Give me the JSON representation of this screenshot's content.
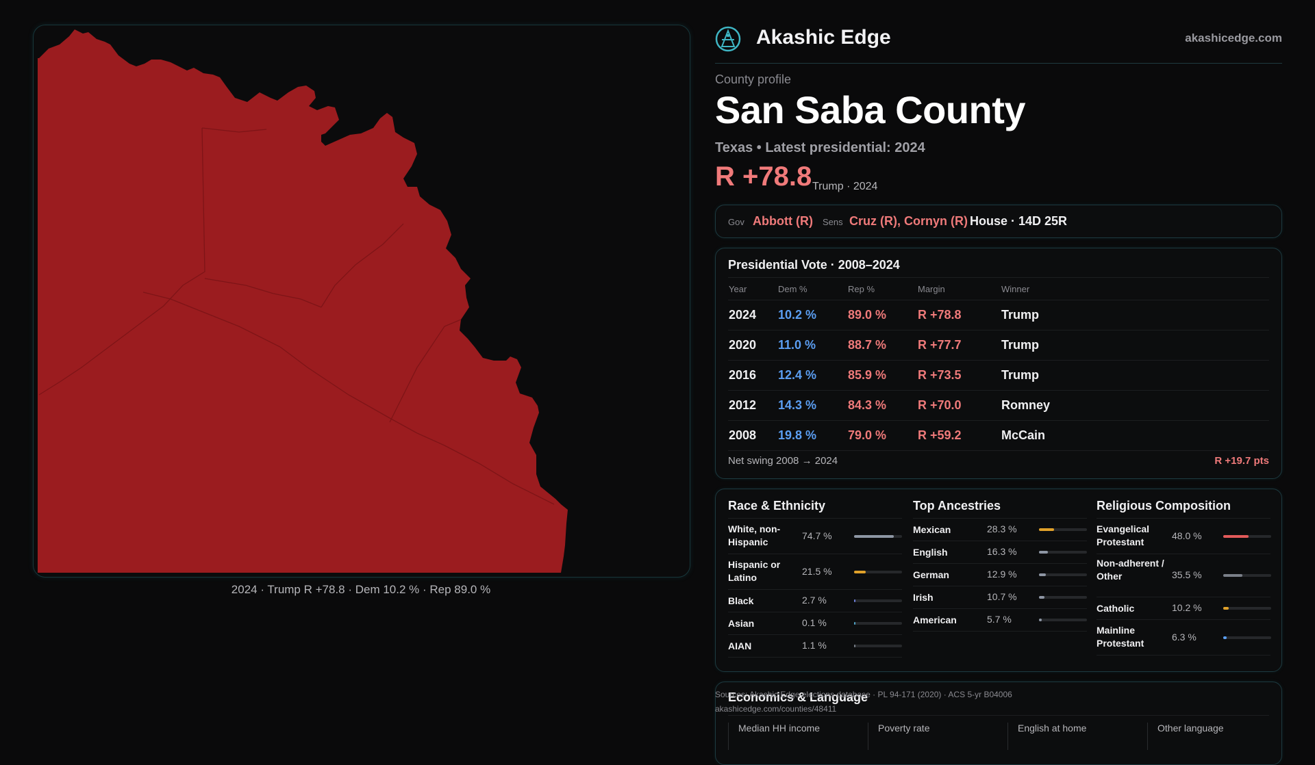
{
  "brand": {
    "name": "Akashic Edge",
    "site": "akashicedge.com"
  },
  "profile": {
    "eyebrow": "County profile",
    "county": "San Saba County",
    "subtitle": "Texas • Latest presidential: 2024",
    "margin": "R +78.8",
    "margin_note": "Trump · 2024"
  },
  "officials": {
    "gov_label": "Gov",
    "gov": "Abbott (R)",
    "sens_label": "Sens",
    "sens": "Cruz (R), Cornyn (R)",
    "house": "House · 14D 25R"
  },
  "presidential": {
    "title": "Presidential Vote · 2008–2024",
    "headers": [
      "Year",
      "Dem %",
      "Rep %",
      "Margin",
      "Winner"
    ],
    "rows": [
      [
        "2024",
        "10.2 %",
        "89.0 %",
        "R +78.8",
        "Trump"
      ],
      [
        "2020",
        "11.0 %",
        "88.7 %",
        "R +77.7",
        "Trump"
      ],
      [
        "2016",
        "12.4 %",
        "85.9 %",
        "R +73.5",
        "Trump"
      ],
      [
        "2012",
        "14.3 %",
        "84.3 %",
        "R +70.0",
        "Romney"
      ],
      [
        "2008",
        "19.8 %",
        "79.0 %",
        "R +59.2",
        "McCain"
      ]
    ],
    "swing_label": "Net swing 2008 → 2024",
    "swing_value": "R +19.7 pts"
  },
  "race": {
    "title": "Race & Ethnicity",
    "items": [
      {
        "name": "White, non-Hispanic",
        "pct": "74.7 %",
        "share": 0.747,
        "color": "#8e96a4"
      },
      {
        "name": "Hispanic or Latino",
        "pct": "21.5 %",
        "share": 0.215,
        "color": "#e0a12a"
      },
      {
        "name": "Black",
        "pct": "2.7 %",
        "share": 0.027,
        "color": "#6e7fd8"
      },
      {
        "name": "Asian",
        "pct": "0.1 %",
        "share": 0.001,
        "color": "#4fa3c7"
      },
      {
        "name": "AIAN",
        "pct": "1.1 %",
        "share": 0.011,
        "color": "#7a7f88"
      }
    ]
  },
  "ancestry": {
    "title": "Top Ancestries",
    "items": [
      {
        "name": "Mexican",
        "pct": "28.3 %",
        "share": 0.283,
        "color": "#e0a12a"
      },
      {
        "name": "English",
        "pct": "16.3 %",
        "share": 0.163,
        "color": "#8e96a4"
      },
      {
        "name": "German",
        "pct": "12.9 %",
        "share": 0.129,
        "color": "#8e96a4"
      },
      {
        "name": "Irish",
        "pct": "10.7 %",
        "share": 0.107,
        "color": "#8e96a4"
      },
      {
        "name": "American",
        "pct": "5.7 %",
        "share": 0.057,
        "color": "#8e96a4"
      }
    ]
  },
  "religion": {
    "title": "Religious Composition",
    "items": [
      {
        "name": "Evangelical Protestant",
        "pct": "48.0 %",
        "share": 0.48,
        "color": "#e25a5a"
      },
      {
        "name": "Non-adherent / Other",
        "pct": "35.5 %",
        "share": 0.355,
        "color": "#7a7f88"
      },
      {
        "name": "Catholic",
        "pct": "10.2 %",
        "share": 0.102,
        "color": "#e0a12a"
      },
      {
        "name": "Mainline Protestant",
        "pct": "6.3 %",
        "share": 0.063,
        "color": "#5b9ef2"
      }
    ]
  },
  "economics": {
    "title": "Economics & Language",
    "headers": [
      "Median HH income",
      "Poverty rate",
      "English at home",
      "Other language"
    ]
  },
  "sources": {
    "line1": "Sources: Akashic Edge elections database · PL 94-171 (2020) · ACS 5-yr B04006",
    "line2": "akashicedge.com/counties/48411"
  },
  "map": {
    "caption": "2024 · Trump R +78.8 · Dem 10.2 % · Rep 89.0 %",
    "fill_color": "#9b1c1f"
  }
}
